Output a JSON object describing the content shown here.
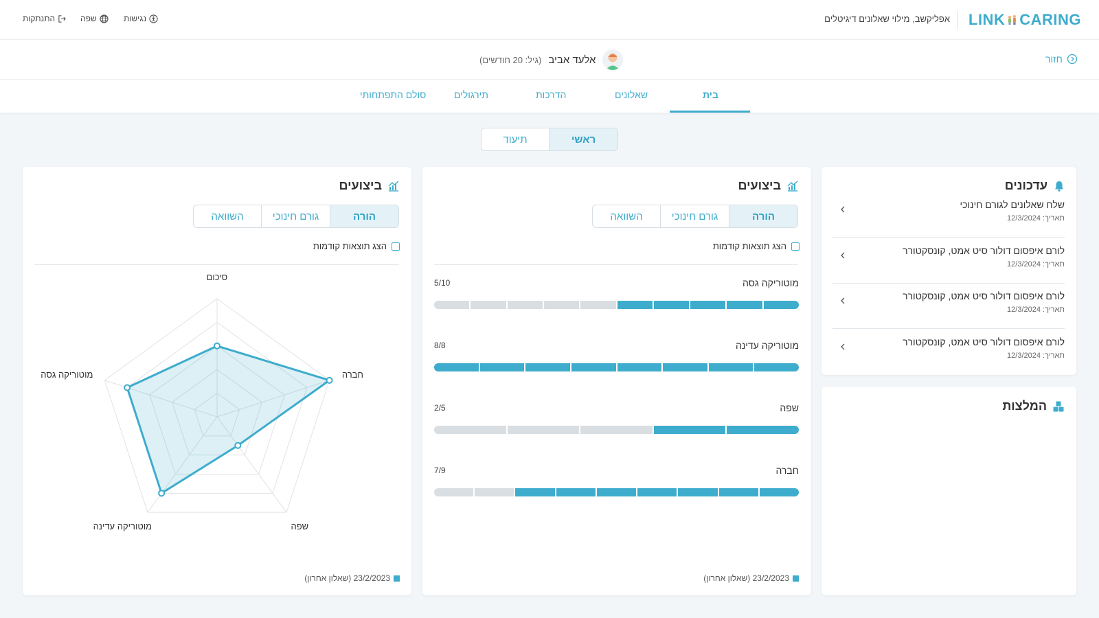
{
  "header": {
    "logo_left": "LINK",
    "logo_right": "CARING",
    "tagline": "אפליקשב, מילוי שאלונים דיגיטלים",
    "accessibility": "נגישות",
    "language": "שפה",
    "logout": "התנתקות"
  },
  "profile": {
    "back": "חזור",
    "child_name": "אלעד אביב",
    "child_age": "(גיל: 20 חודשים)"
  },
  "tabs": [
    {
      "label": "בית",
      "active": true
    },
    {
      "label": "שאלונים",
      "active": false
    },
    {
      "label": "הדרכות",
      "active": false
    },
    {
      "label": "תירגולים",
      "active": false
    },
    {
      "label": "סולם התפתחותי",
      "active": false
    }
  ],
  "view_toggle": {
    "primary": "ראשי",
    "secondary": "תיעוד",
    "selected": "ראשי"
  },
  "performance_bars": {
    "title": "ביצועים",
    "toggle": [
      "הורה",
      "גורם חינוכי",
      "השוואה"
    ],
    "selected": "הורה",
    "show_previous": "הצג תוצאות קודמות",
    "metrics": [
      {
        "label": "מוטוריקה גסה",
        "score": "5/10",
        "value": 5,
        "max": 10
      },
      {
        "label": "מוטוריקה עדינה",
        "score": "8/8",
        "value": 8,
        "max": 8
      },
      {
        "label": "שפה",
        "score": "2/5",
        "value": 2,
        "max": 5
      },
      {
        "label": "חברה",
        "score": "7/9",
        "value": 7,
        "max": 9
      }
    ],
    "legend": "23/2/2023 (שאלון אחרון)"
  },
  "performance_radar": {
    "title": "ביצועים",
    "toggle": [
      "הורה",
      "גורם חינוכי",
      "השוואה"
    ],
    "selected": "הורה",
    "show_previous": "הצג תוצאות קודמות",
    "legend": "23/2/2023 (שאלון אחרון)"
  },
  "chart_data": {
    "type": "radar",
    "categories": [
      "סיכום",
      "חברה",
      "שפה",
      "מוטוריקה עדינה",
      "מוטוריקה גסה"
    ],
    "values": [
      0.6,
      1.0,
      0.3,
      0.8,
      0.8
    ],
    "rmax": 1.0,
    "rings": 5
  },
  "updates": {
    "title": "עדכונים",
    "items": [
      {
        "text": "שלח שאלונים לגורם חינוכי",
        "date": "תאריך: 12/3/2024"
      },
      {
        "text": "לורם איפסום דולור סיט אמט, קונסקטורר",
        "date": "תאריך: 12/3/2024"
      },
      {
        "text": "לורם איפסום דולור סיט אמט, קונסקטורר",
        "date": "תאריך: 12/3/2024"
      },
      {
        "text": "לורם איפסום דולור סיט אמט, קונסקטורר",
        "date": "תאריך: 12/3/2024"
      }
    ]
  },
  "recommendations": {
    "title": "המלצות"
  },
  "colors": {
    "accent": "#3eaccc",
    "accent_light": "#e4f2f8",
    "empty_segment": "#d9dee2"
  }
}
